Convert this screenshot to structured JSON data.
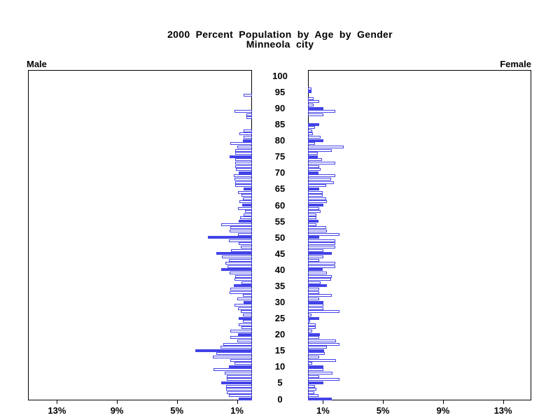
{
  "title": {
    "line1": "2000 Percent Population by Age by Gender",
    "line2": "Minneola city"
  },
  "panel_labels": {
    "male": "Male",
    "female": "Female"
  },
  "colors": {
    "bar_blue": "#4343e8",
    "panel_border": "#000000",
    "background": "#ffffff"
  },
  "chart_data": {
    "type": "bar",
    "subtype": "population-pyramid",
    "title": "2000 Percent Population by Age by Gender",
    "subtitle": "Minneola city",
    "left_series": "Male",
    "right_series": "Female",
    "unit": "percent of population",
    "age_axis": {
      "min": 0,
      "max": 100,
      "label_step": 5,
      "tick_labels": [
        "0",
        "5",
        "10",
        "15",
        "20",
        "25",
        "30",
        "35",
        "40",
        "45",
        "50",
        "55",
        "60",
        "65",
        "70",
        "75",
        "80",
        "85",
        "90",
        "95",
        "100"
      ]
    },
    "pct_axis": {
      "tick_values": [
        1,
        5,
        9,
        13
      ],
      "left_labels": [
        "13%",
        "9%",
        "5%",
        "1%"
      ],
      "right_labels": [
        "1%",
        "5%",
        "9%",
        "13%"
      ],
      "range": [
        0,
        14.9
      ],
      "grid": false
    },
    "solid_fill_age_step": 5,
    "ages_note": "one bar per single year of age 0-100; bars at ages divisible by 5 are solid filled",
    "male": [
      0.88,
      1.53,
      1.67,
      1.72,
      1.72,
      2.05,
      1.67,
      1.67,
      1.81,
      2.56,
      1.53,
      1.16,
      1.45,
      2.63,
      2.4,
      3.8,
      2.09,
      1.9,
      1.0,
      1.44,
      0.93,
      1.44,
      0.7,
      0.88,
      0.6,
      0.88,
      0.6,
      0.74,
      0.93,
      1.16,
      0.57,
      0.98,
      0.6,
      1.49,
      1.44,
      1.21,
      0.7,
      1.16,
      1.12,
      1.49,
      2.05,
      1.63,
      1.77,
      1.53,
      2.0,
      2.37,
      1.4,
      0.74,
      0.88,
      1.54,
      2.93,
      0.93,
      1.49,
      1.44,
      2.05,
      0.88,
      0.79,
      0.56,
      0.47,
      0.93,
      0.65,
      0.84,
      0.6,
      0.7,
      0.93,
      0.57,
      1.1,
      1.12,
      1.16,
      1.2,
      0.88,
      1.07,
      1.1,
      1.12,
      1.12,
      1.49,
      1.12,
      1.12,
      0.98,
      1.44,
      0.6,
      0.56,
      0.84,
      0.56,
      0.0,
      0.0,
      0.0,
      0.37,
      0.37,
      1.16,
      0.0,
      0.0,
      0.0,
      0.0,
      0.56,
      0.0,
      0.0,
      0.0,
      0.0,
      0.0,
      0.0
    ],
    "female": [
      1.6,
      0.7,
      0.42,
      0.56,
      0.47,
      1.02,
      2.09,
      0.74,
      1.63,
      1.02,
      1.02,
      0.28,
      1.86,
      0.74,
      1.12,
      1.07,
      1.26,
      2.09,
      1.86,
      0.74,
      0.79,
      0.28,
      0.51,
      0.51,
      0.14,
      0.74,
      0.23,
      2.09,
      1.02,
      1.02,
      1.02,
      0.74,
      1.58,
      0.74,
      0.74,
      1.26,
      0.84,
      1.53,
      1.58,
      1.26,
      0.98,
      1.81,
      1.81,
      0.74,
      1.02,
      1.58,
      1.02,
      1.81,
      1.81,
      1.81,
      0.74,
      2.09,
      1.26,
      1.21,
      0.56,
      0.7,
      0.56,
      0.56,
      0.84,
      0.74,
      1.02,
      1.26,
      1.21,
      0.98,
      0.98,
      0.74,
      1.21,
      1.74,
      1.53,
      1.81,
      0.7,
      0.84,
      0.74,
      1.81,
      0.93,
      0.65,
      0.65,
      1.58,
      2.39,
      0.47,
      1.02,
      0.84,
      0.33,
      0.28,
      0.47,
      0.73,
      0.0,
      0.0,
      1.02,
      1.81,
      1.02,
      0.37,
      0.74,
      0.37,
      0.0,
      0.23,
      0.23,
      0.0,
      0.0,
      0.0,
      0.0
    ]
  }
}
